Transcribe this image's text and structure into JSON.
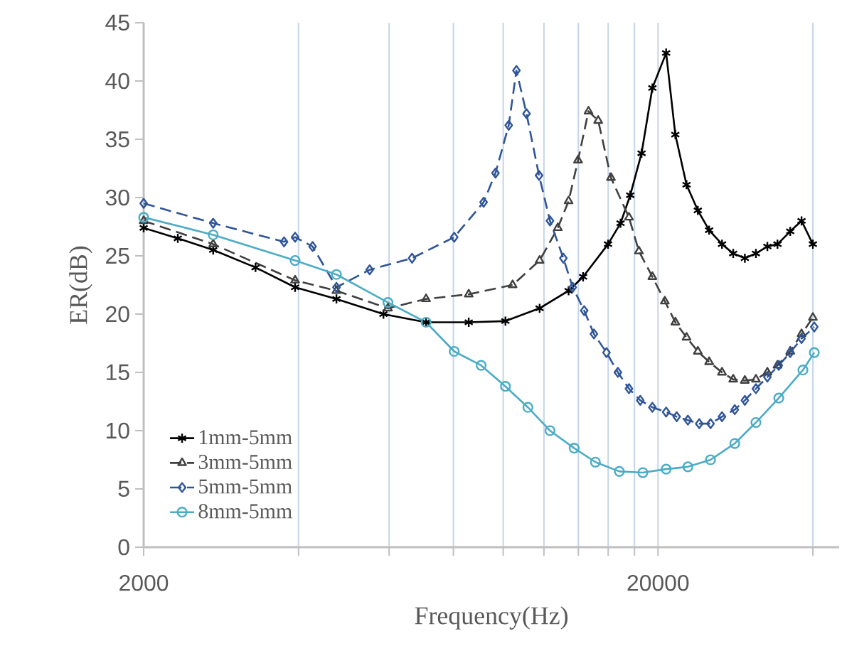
{
  "chart_data": {
    "type": "line",
    "xlabel": "Frequency(Hz)",
    "ylabel": "ER(dB)",
    "log": "x",
    "grid": "x",
    "legend": "bottom left",
    "xlim": [
      2000,
      45000
    ],
    "ylim": [
      0,
      45
    ],
    "xticks": [
      2000,
      {
        "value": 4000,
        "label": null
      },
      {
        "value": 6000,
        "label": null
      },
      {
        "value": 8000,
        "label": null
      },
      {
        "value": 10000,
        "label": null
      },
      {
        "value": 12000,
        "label": null
      },
      {
        "value": 14000,
        "label": null
      },
      {
        "value": 16000,
        "label": null
      },
      {
        "value": 18000,
        "label": null
      },
      20000,
      {
        "value": 40000,
        "label": null
      }
    ],
    "yticks": [
      0,
      5,
      10,
      15,
      20,
      25,
      30,
      35,
      40,
      45
    ],
    "series": [
      {
        "name": "1mm-5mm",
        "color": "#000000",
        "marker": "cross",
        "line_style": "solid",
        "x": [
          2000,
          2330,
          2730,
          3300,
          3940,
          4740,
          5850,
          7080,
          8570,
          10100,
          11770,
          13400,
          14300,
          15990,
          16910,
          17660,
          18580,
          19500,
          20740,
          21610,
          22720,
          23900,
          25140,
          26630,
          28000,
          29500,
          31000,
          32630,
          34140,
          36150,
          38020,
          40000
        ],
        "values": [
          27.4,
          26.5,
          25.5,
          24,
          22.3,
          21.3,
          20,
          19.3,
          19.3,
          19.4,
          20.5,
          22,
          23.2,
          26,
          27.8,
          30.2,
          33.8,
          39.4,
          42.4,
          35.4,
          31.1,
          28.9,
          27.2,
          26,
          25.2,
          24.8,
          25.2,
          25.8,
          26,
          27.1,
          28,
          26
        ]
      },
      {
        "name": "3mm-5mm",
        "color": "#404040",
        "marker": "triangle",
        "line_style": "dashed",
        "x": [
          2000,
          2730,
          3940,
          4740,
          5970,
          7080,
          8570,
          10430,
          11770,
          12770,
          13400,
          13980,
          14650,
          15300,
          16200,
          17560,
          18360,
          19500,
          20620,
          21610,
          22720,
          23900,
          25140,
          26630,
          28000,
          29500,
          31000,
          32630,
          34140,
          36150,
          38020,
          40000
        ],
        "values": [
          28,
          26,
          22.9,
          22,
          20.5,
          21.3,
          21.7,
          22.5,
          24.6,
          27.4,
          29.7,
          33.2,
          37.4,
          36.6,
          31.7,
          28.3,
          25.4,
          23.2,
          21.1,
          19.3,
          18,
          16.8,
          15.9,
          15,
          14.4,
          14.3,
          14.4,
          15,
          15.6,
          16.8,
          18.3,
          19.7
        ]
      },
      {
        "name": "5mm-5mm",
        "color": "#2f5597",
        "marker": "diamond",
        "line_style": "dashed",
        "x": [
          2000,
          2730,
          3750,
          3940,
          4260,
          4740,
          5500,
          6650,
          8030,
          9160,
          9660,
          10250,
          10610,
          11100,
          11740,
          12330,
          13090,
          13650,
          14370,
          15010,
          15880,
          16710,
          17560,
          18470,
          19500,
          20740,
          21740,
          22860,
          24050,
          25300,
          26630,
          28200,
          29500,
          31000,
          32630,
          34340,
          36150,
          38020,
          40250
        ],
        "values": [
          29.5,
          27.8,
          26.2,
          26.6,
          25.8,
          22.3,
          23.8,
          24.8,
          26.6,
          29.6,
          32.1,
          36.2,
          40.9,
          37.2,
          31.9,
          28,
          24.8,
          22.3,
          20.3,
          18.3,
          16.7,
          15,
          13.6,
          12.6,
          12,
          11.6,
          11.2,
          10.9,
          10.6,
          10.6,
          11.2,
          11.8,
          12.6,
          13.6,
          14.6,
          15.6,
          16.7,
          17.9,
          18.9
        ]
      },
      {
        "name": "8mm-5mm",
        "color": "#4bacc6",
        "marker": "circle",
        "line_style": "solid",
        "x": [
          2000,
          2730,
          3940,
          4740,
          5970,
          7080,
          8030,
          9060,
          10100,
          11170,
          12330,
          13740,
          15110,
          16820,
          18690,
          20740,
          22860,
          25300,
          28200,
          31000,
          34340,
          38260,
          40250
        ],
        "values": [
          28.3,
          26.8,
          24.6,
          23.4,
          21,
          19.3,
          16.8,
          15.6,
          13.8,
          12,
          10,
          8.5,
          7.3,
          6.5,
          6.4,
          6.7,
          6.9,
          7.5,
          8.9,
          10.7,
          12.8,
          15.2,
          16.7
        ]
      }
    ]
  }
}
